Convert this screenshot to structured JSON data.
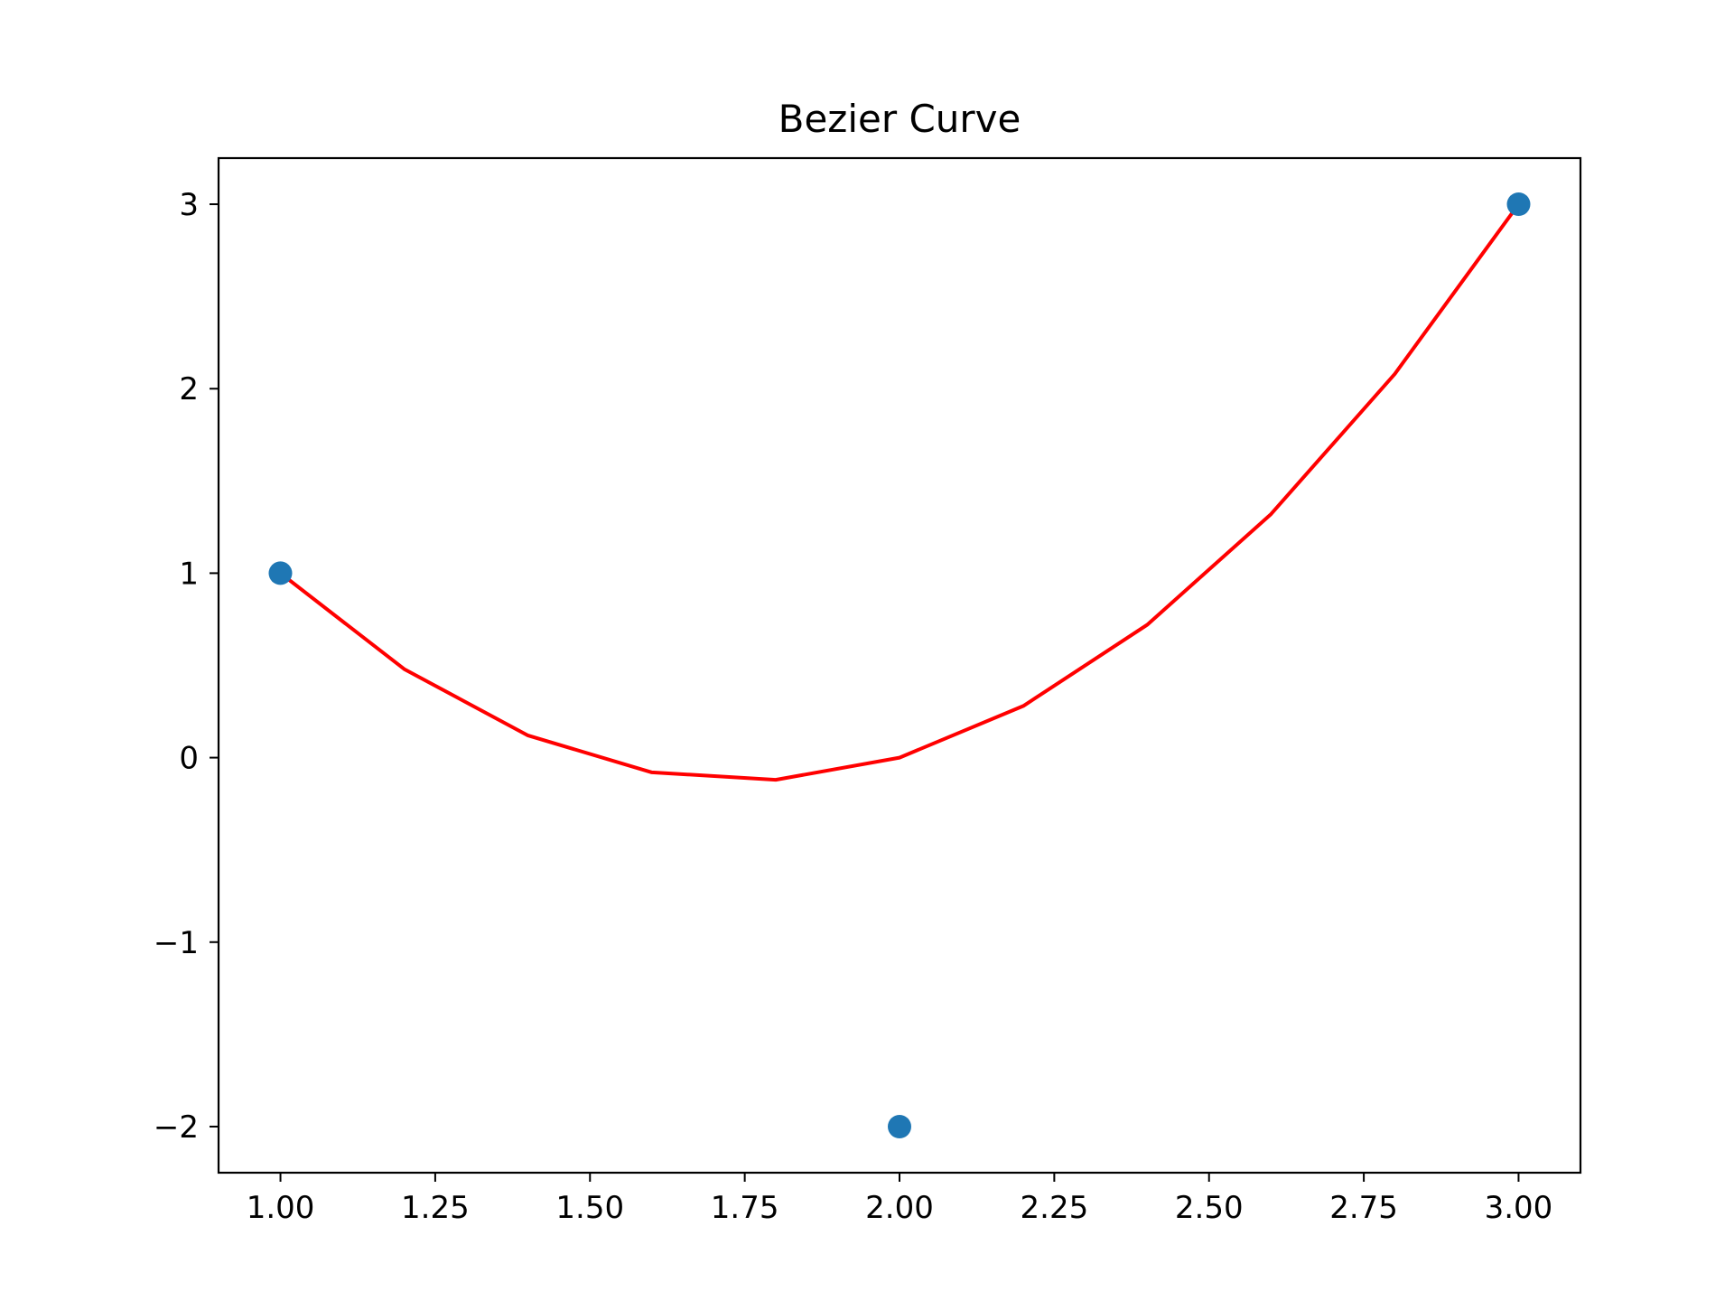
{
  "chart_data": {
    "type": "line",
    "title": "Bezier Curve",
    "xlabel": "",
    "ylabel": "",
    "xlim": [
      0.9,
      3.1
    ],
    "ylim": [
      -2.25,
      3.25
    ],
    "grid": false,
    "x_ticks": [
      1.0,
      1.25,
      1.5,
      1.75,
      2.0,
      2.25,
      2.5,
      2.75,
      3.0
    ],
    "x_tick_labels": [
      "1.00",
      "1.25",
      "1.50",
      "1.75",
      "2.00",
      "2.25",
      "2.50",
      "2.75",
      "3.00"
    ],
    "y_ticks": [
      -2,
      -1,
      0,
      1,
      2,
      3
    ],
    "y_tick_labels": [
      "−2",
      "−1",
      "0",
      "1",
      "2",
      "3"
    ],
    "series": [
      {
        "kind": "line",
        "color": "#ff0000",
        "x": [
          1.0,
          1.2,
          1.4,
          1.6,
          1.8,
          2.0,
          2.2,
          2.4,
          2.6,
          2.8,
          3.0
        ],
        "y": [
          1.0,
          0.48,
          0.12,
          -0.08,
          -0.12,
          0.0,
          0.28,
          0.72,
          1.32,
          2.08,
          3.0
        ]
      },
      {
        "kind": "scatter",
        "color": "#1f77b4",
        "x": [
          1.0,
          2.0,
          3.0
        ],
        "y": [
          1.0,
          -2.0,
          3.0
        ]
      }
    ]
  }
}
